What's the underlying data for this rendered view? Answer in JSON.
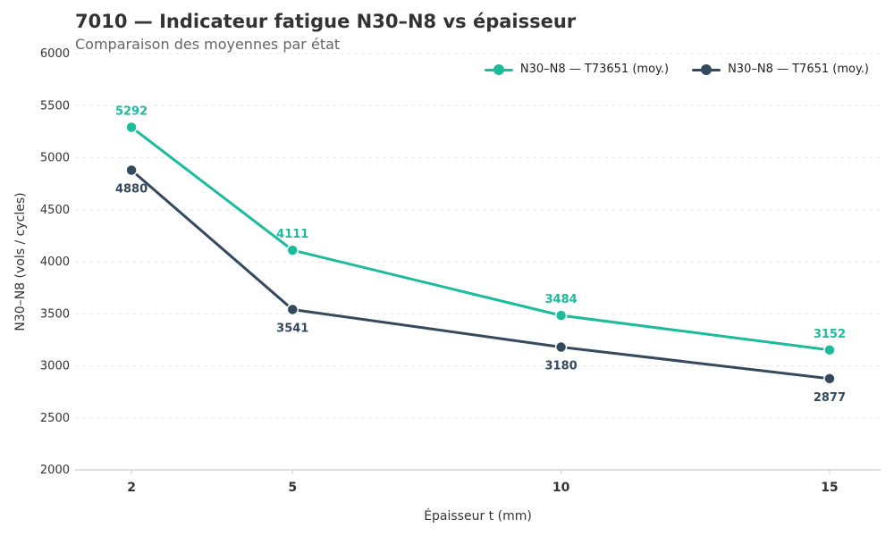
{
  "title": "7010 — Indicateur fatigue N30–N8 vs épaisseur",
  "subtitle": "Comparaison des moyennes par état",
  "chart_data": {
    "type": "line",
    "x": [
      2,
      5,
      10,
      15
    ],
    "xlabel": "Épaisseur t (mm)",
    "ylabel": "N30–N8 (vols / cycles)",
    "ylim": [
      2000,
      6000
    ],
    "yticks": [
      2000,
      2500,
      3000,
      3500,
      4000,
      4500,
      5000,
      5500,
      6000
    ],
    "xticks": [
      2,
      5,
      10,
      15
    ],
    "grid": true,
    "legend_position": "top-right",
    "series": [
      {
        "name": "N30–N8 — T73651 (moy.)",
        "values": [
          5292,
          4111,
          3484,
          3152
        ],
        "color": "#1abc9c",
        "labels": [
          "5292",
          "4111",
          "3484",
          "3152"
        ],
        "label_position": "above"
      },
      {
        "name": "N30–N8 — T7651 (moy.)",
        "values": [
          4880,
          3541,
          3180,
          2877
        ],
        "color": "#34495e",
        "labels": [
          "4880",
          "3541",
          "3180",
          "2877"
        ],
        "label_position": "below"
      }
    ]
  }
}
